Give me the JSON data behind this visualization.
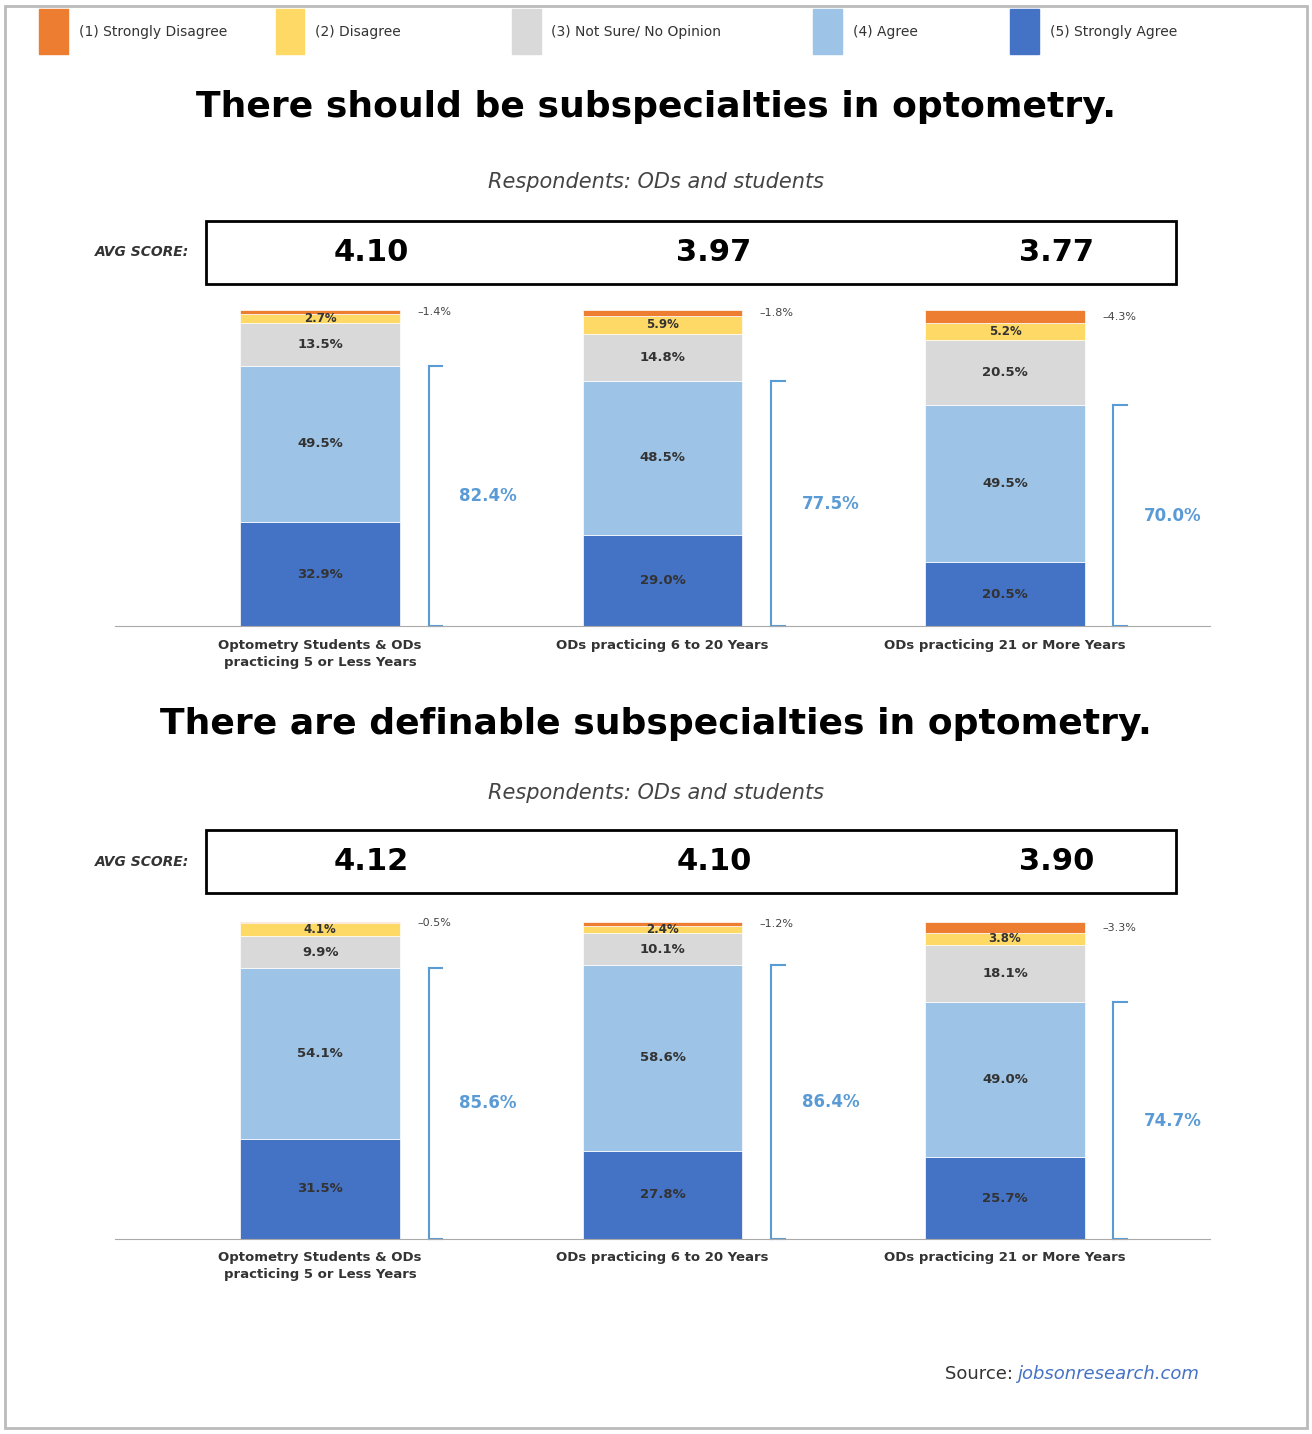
{
  "chart1": {
    "title": "There should be subspecialties in optometry.",
    "subtitle": "Respondents: ODs and students",
    "avg_scores": [
      "4.10",
      "3.97",
      "3.77"
    ],
    "groups": [
      "Optometry Students & ODs\npracticing 5 or Less Years",
      "ODs practicing 6 to 20 Years",
      "ODs practicing 21 or More Years"
    ],
    "segments": {
      "strongly_agree": [
        32.9,
        29.0,
        20.5
      ],
      "agree": [
        49.5,
        48.5,
        49.5
      ],
      "not_sure": [
        13.5,
        14.8,
        20.5
      ],
      "disagree": [
        2.7,
        5.9,
        5.2
      ],
      "strongly_disagree": [
        1.4,
        1.8,
        4.3
      ]
    },
    "combined_pcts": [
      "82.4%",
      "77.5%",
      "70.0%"
    ]
  },
  "chart2": {
    "title": "There are definable subspecialties in optometry.",
    "subtitle": "Respondents: ODs and students",
    "avg_scores": [
      "4.12",
      "4.10",
      "3.90"
    ],
    "groups": [
      "Optometry Students & ODs\npracticing 5 or Less Years",
      "ODs practicing 6 to 20 Years",
      "ODs practicing 21 or More Years"
    ],
    "segments": {
      "strongly_agree": [
        31.5,
        27.8,
        25.7
      ],
      "agree": [
        54.1,
        58.6,
        49.0
      ],
      "not_sure": [
        9.9,
        10.1,
        18.1
      ],
      "disagree": [
        4.1,
        2.4,
        3.8
      ],
      "strongly_disagree": [
        0.5,
        1.2,
        3.3
      ]
    },
    "combined_pcts": [
      "85.6%",
      "86.4%",
      "74.7%"
    ]
  },
  "colors": {
    "strongly_agree": "#4472C4",
    "agree": "#9DC3E6",
    "not_sure": "#D9D9D9",
    "disagree": "#FFD966",
    "strongly_disagree": "#ED7D31"
  },
  "legend_labels": [
    "(1) Strongly Disagree",
    "(2) Disagree",
    "(3) Not Sure/ No Opinion",
    "(4) Agree",
    "(5) Strongly Agree"
  ],
  "source_prefix": "Source: ",
  "source_link": "jobsonresearch.com",
  "background_color": "#FFFFFF",
  "avg_score_label": "AVG SCORE:",
  "combined_color": "#5B9BD5",
  "border_color": "#BBBBBB"
}
